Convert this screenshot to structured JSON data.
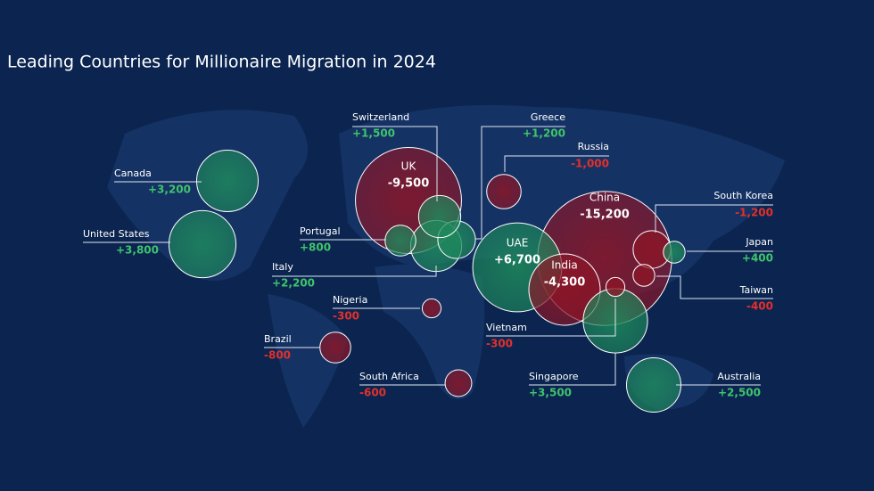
{
  "chart_data": {
    "type": "bubble-map",
    "title": "Leading Countries for Millionaire Migration in 2024",
    "categories": [
      "Canada",
      "United States",
      "UK",
      "Switzerland",
      "Greece",
      "Portugal",
      "Italy",
      "Russia",
      "China",
      "South Korea",
      "Japan",
      "Taiwan",
      "UAE",
      "India",
      "Vietnam",
      "Singapore",
      "Australia",
      "Nigeria",
      "Brazil",
      "South Africa"
    ],
    "values": [
      3200,
      3800,
      -9500,
      1500,
      1200,
      800,
      2200,
      -1000,
      -15200,
      -1200,
      400,
      -400,
      6700,
      -4300,
      -300,
      3500,
      2500,
      -300,
      -800,
      -600
    ],
    "value_labels": [
      "+3,200",
      "+3,800",
      "-9,500",
      "+1,500",
      "+1,200",
      "+800",
      "+2,200",
      "-1,000",
      "-15,200",
      "-1,200",
      "+400",
      "-400",
      "+6,700",
      "-4,300",
      "-300",
      "+3,500",
      "+2,500",
      "-300",
      "-800",
      "-600"
    ],
    "positive_color": "#1e8a5c",
    "negative_color": "#8e1526",
    "positive_label_color": "#3fc46c",
    "negative_label_color": "#e3302b"
  }
}
